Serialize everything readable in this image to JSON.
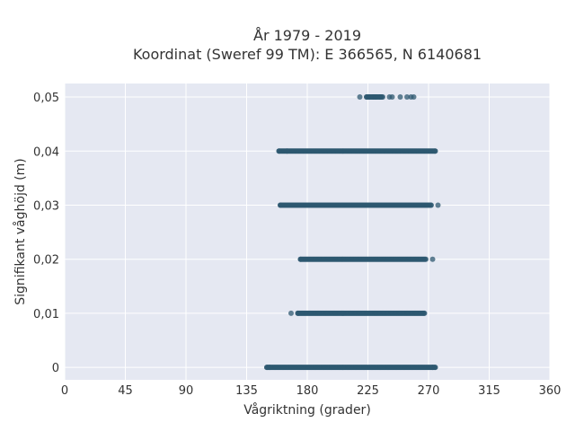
{
  "chart_data": {
    "type": "scatter",
    "title_lines": [
      "År 1979 - 2019",
      "Koordinat (Sweref 99 TM): E 366565, N 6140681"
    ],
    "xlabel": "Vågriktning (grader)",
    "ylabel": "Signifikant våghöjd (m)",
    "xlim": [
      0,
      360
    ],
    "ylim": [
      -0.0023,
      0.0525
    ],
    "x_ticks": [
      0,
      45,
      90,
      135,
      180,
      225,
      270,
      315,
      360
    ],
    "x_tick_labels": [
      "0",
      "45",
      "90",
      "135",
      "180",
      "225",
      "270",
      "315",
      "360"
    ],
    "y_ticks": [
      0,
      0.01,
      0.02,
      0.03,
      0.04,
      0.05
    ],
    "y_tick_labels": [
      "0",
      "0,01",
      "0,02",
      "0,03",
      "0,04",
      "0,05"
    ],
    "grid": true,
    "colors": {
      "plot_bg": "#e5e8f2",
      "marker": "#2e5870",
      "grid": "#ffffff"
    },
    "bands": [
      {
        "y": 0,
        "dense_range": [
          150,
          275
        ],
        "sparse_x": [
          150,
          152,
          273,
          275
        ]
      },
      {
        "y": 0.01,
        "dense_range": [
          173,
          267
        ],
        "sparse_x": [
          168,
          173,
          267
        ]
      },
      {
        "y": 0.02,
        "dense_range": [
          175,
          268
        ],
        "sparse_x": [
          175,
          273
        ]
      },
      {
        "y": 0.03,
        "dense_range": [
          160,
          272
        ],
        "sparse_x": [
          160,
          272,
          277
        ]
      },
      {
        "y": 0.04,
        "dense_range": [
          159,
          275
        ],
        "sparse_x": [
          159,
          165,
          275
        ]
      },
      {
        "y": 0.05,
        "dense_range": [
          224,
          236
        ],
        "sparse_x": [
          219,
          224,
          226,
          229,
          231,
          234,
          241,
          243,
          249,
          254,
          257,
          259
        ]
      }
    ]
  }
}
